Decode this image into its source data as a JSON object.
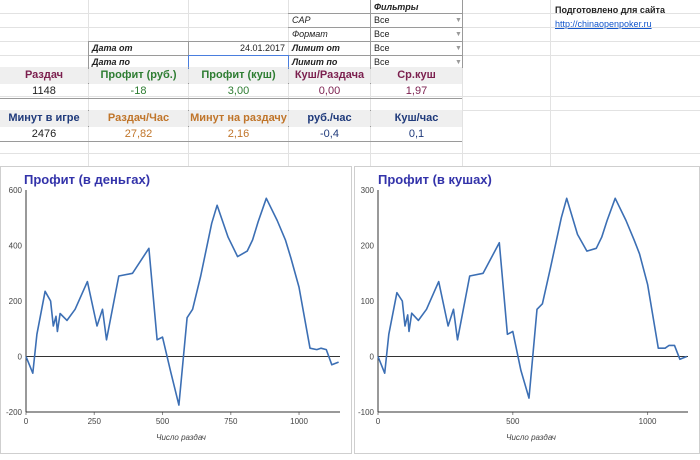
{
  "filters": {
    "header": "Фильтры",
    "rows": [
      {
        "label": "CAP",
        "value": "Все"
      },
      {
        "label": "Формат",
        "value": "Все"
      },
      {
        "label": "Лимит от",
        "value": "Все"
      },
      {
        "label": "Лимит по",
        "value": "Все"
      }
    ]
  },
  "dates": {
    "from_label": "Дата от",
    "from_value": "24.01.2017",
    "to_label": "Дата по",
    "to_value": ""
  },
  "credit": {
    "text": "Подготовлено для сайта",
    "link": "http://chinaopenpoker.ru"
  },
  "stats1": {
    "headers": [
      "Раздач",
      "Профит (руб.)",
      "Профит (куш)",
      "Куш/Раздача",
      "Ср.куш"
    ],
    "values": [
      "1148",
      "-18",
      "3,00",
      "0,00",
      "1,97"
    ],
    "colors": [
      "#7b1f4e",
      "#2e7d32",
      "#2e7d32",
      "#7b1f4e",
      "#7b1f4e"
    ]
  },
  "stats2": {
    "headers": [
      "Минут в игре",
      "Раздач/Час",
      "Минут на раздачу",
      "руб./час",
      "Куш/час"
    ],
    "values": [
      "2476",
      "27,82",
      "2,16",
      "-0,4",
      "0,1"
    ],
    "colors": [
      "#1f3a7b",
      "#c0752a",
      "#c0752a",
      "#1f3a7b",
      "#1f3a7b"
    ]
  },
  "chart_data": [
    {
      "type": "line",
      "title": "Профит (в деньгах)",
      "xlabel": "Число раздач",
      "ylabel": "",
      "xlim": [
        0,
        1150
      ],
      "ylim": [
        -200,
        600
      ],
      "xticks": [
        0,
        250,
        500,
        750,
        1000
      ],
      "yticks": [
        -200,
        0,
        200,
        400,
        600
      ],
      "color": "#3c6fb4",
      "x": [
        0,
        25,
        40,
        70,
        90,
        100,
        110,
        115,
        125,
        150,
        180,
        225,
        260,
        280,
        295,
        340,
        390,
        450,
        480,
        500,
        530,
        560,
        590,
        610,
        640,
        680,
        700,
        740,
        775,
        810,
        830,
        850,
        880,
        920,
        950,
        970,
        1000,
        1040,
        1065,
        1080,
        1100,
        1120,
        1145
      ],
      "y": [
        0,
        -60,
        80,
        235,
        200,
        110,
        145,
        90,
        155,
        130,
        170,
        270,
        110,
        170,
        60,
        290,
        300,
        390,
        60,
        70,
        -55,
        -175,
        140,
        170,
        290,
        480,
        545,
        430,
        360,
        380,
        420,
        485,
        570,
        490,
        420,
        355,
        250,
        30,
        25,
        30,
        25,
        -30,
        -20
      ]
    },
    {
      "type": "line",
      "title": "Профит (в кушах)",
      "xlabel": "Число раздач",
      "ylabel": "",
      "xlim": [
        0,
        1150
      ],
      "ylim": [
        -100,
        300
      ],
      "xticks": [
        0,
        500,
        1000
      ],
      "yticks": [
        -100,
        0,
        100,
        200,
        300
      ],
      "color": "#3c6fb4",
      "x": [
        0,
        25,
        40,
        70,
        90,
        100,
        110,
        115,
        125,
        150,
        180,
        225,
        260,
        280,
        295,
        340,
        390,
        450,
        480,
        500,
        530,
        560,
        590,
        610,
        640,
        680,
        700,
        740,
        775,
        810,
        830,
        850,
        880,
        920,
        950,
        970,
        1000,
        1040,
        1065,
        1080,
        1100,
        1120,
        1145
      ],
      "y": [
        0,
        -30,
        40,
        115,
        100,
        55,
        75,
        45,
        78,
        65,
        85,
        135,
        55,
        85,
        30,
        145,
        150,
        205,
        40,
        45,
        -25,
        -75,
        85,
        95,
        160,
        250,
        285,
        220,
        190,
        195,
        215,
        245,
        285,
        245,
        210,
        185,
        130,
        15,
        15,
        20,
        20,
        -5,
        0
      ]
    }
  ]
}
